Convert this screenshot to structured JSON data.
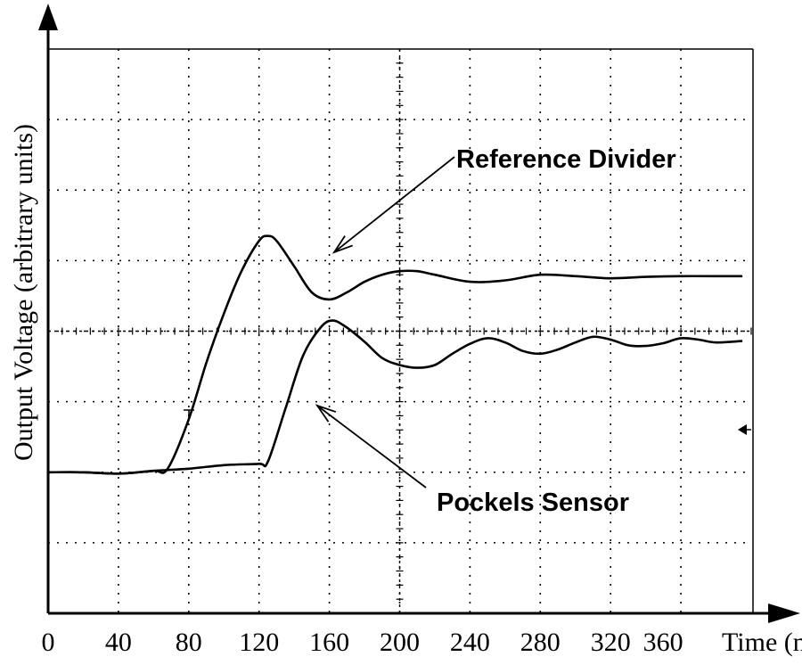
{
  "chart_data": {
    "type": "line",
    "xlabel": "Time (n",
    "ylabel": "Output Voltage (arbitrary units)",
    "x_ticks": [
      "0",
      "40",
      "80",
      "120",
      "160",
      "200",
      "240",
      "280",
      "320",
      "360"
    ],
    "xlim": [
      0,
      400
    ],
    "ylim": [
      0,
      8
    ],
    "grid": true,
    "series": [
      {
        "name": "Reference Divider",
        "x": [
          0,
          20,
          40,
          60,
          68,
          80,
          90,
          100,
          110,
          120,
          125,
          130,
          140,
          150,
          160,
          170,
          180,
          190,
          200,
          210,
          220,
          240,
          260,
          280,
          300,
          320,
          340,
          360,
          380,
          395
        ],
        "y": [
          2.0,
          2.0,
          1.98,
          2.02,
          2.05,
          2.75,
          3.55,
          4.25,
          4.85,
          5.28,
          5.35,
          5.28,
          4.92,
          4.55,
          4.45,
          4.55,
          4.7,
          4.8,
          4.85,
          4.85,
          4.8,
          4.7,
          4.72,
          4.8,
          4.78,
          4.75,
          4.77,
          4.78,
          4.78,
          4.78
        ]
      },
      {
        "name": "Pockels Sensor",
        "x": [
          0,
          20,
          40,
          60,
          80,
          100,
          120,
          125,
          135,
          145,
          155,
          162,
          170,
          180,
          190,
          200,
          210,
          220,
          230,
          240,
          250,
          260,
          270,
          280,
          290,
          300,
          310,
          320,
          330,
          340,
          350,
          360,
          370,
          380,
          395
        ],
        "y": [
          2.0,
          2.0,
          1.98,
          2.02,
          2.05,
          2.1,
          2.12,
          2.15,
          2.9,
          3.65,
          4.05,
          4.15,
          4.05,
          3.85,
          3.62,
          3.52,
          3.48,
          3.52,
          3.68,
          3.82,
          3.9,
          3.84,
          3.72,
          3.68,
          3.74,
          3.84,
          3.92,
          3.88,
          3.8,
          3.79,
          3.83,
          3.9,
          3.88,
          3.84,
          3.86
        ]
      }
    ],
    "annotations": [
      {
        "text": "Reference Divider"
      },
      {
        "text": "Pockels Sensor"
      }
    ]
  }
}
